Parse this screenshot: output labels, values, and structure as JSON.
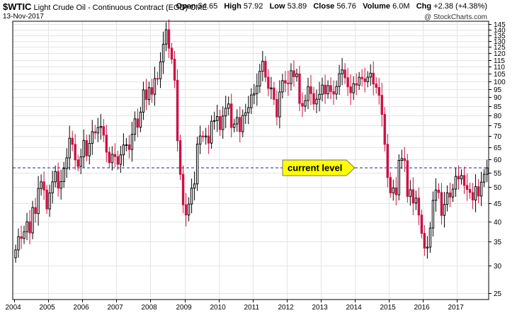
{
  "header": {
    "symbol": "$WTIC",
    "name": "Light Crude Oil - Continuous Contract (EOD)",
    "exchange": "CME",
    "date": "13-Nov-2017",
    "open_label": "Open",
    "open_value": "54.65",
    "high_label": "High",
    "high_value": "57.92",
    "low_label": "Low",
    "low_value": "53.89",
    "close_label": "Close",
    "close_value": "56.76",
    "volume_label": "Volume",
    "volume_value": "6.0M",
    "chg_label": "Chg",
    "chg_value": "+2.38 (+4.38%)",
    "brand": "@ StockCharts.com"
  },
  "colors": {
    "up": "#000000",
    "down": "#cc1144",
    "grid": "#e4e4e4",
    "reference_line": "#1a2a88",
    "annotation_fill": "#ffff00"
  },
  "chart_data": {
    "type": "candlestick",
    "interval": "monthly",
    "x_tick_labels": [
      "2004",
      "2005",
      "2006",
      "2007",
      "2008",
      "2009",
      "2010",
      "2011",
      "2012",
      "2013",
      "2014",
      "2015",
      "2016",
      "2017"
    ],
    "y_tick_labels": [
      25,
      30,
      35,
      40,
      45,
      50,
      55,
      60,
      65,
      70,
      75,
      80,
      85,
      90,
      95,
      100,
      105,
      110,
      115,
      120,
      125,
      130,
      135,
      140,
      145
    ],
    "ylim": [
      24,
      148
    ],
    "y_scale": "log",
    "grid": true,
    "reference_line": {
      "value": 56.76,
      "style": "dashed"
    },
    "annotation": {
      "text": "current level",
      "value": 56.76,
      "shape": "arrow-right"
    },
    "start": "2004-01",
    "closes": [
      33.2,
      36.2,
      35.8,
      37.4,
      39.9,
      37.1,
      43.8,
      42.1,
      49.6,
      51.8,
      49.1,
      43.4,
      48.2,
      51.8,
      55.4,
      49.7,
      51.9,
      56.5,
      60.6,
      68.9,
      66.2,
      59.8,
      57.3,
      61.0,
      67.9,
      61.4,
      66.6,
      71.9,
      71.3,
      73.9,
      74.4,
      70.3,
      62.9,
      58.7,
      62.0,
      61.1,
      58.1,
      61.8,
      65.9,
      66.0,
      64.0,
      70.7,
      78.2,
      74.0,
      81.7,
      94.5,
      88.7,
      95.9,
      91.8,
      101.8,
      101.6,
      113.5,
      127.4,
      140.0,
      124.1,
      115.5,
      100.6,
      67.8,
      54.4,
      44.6,
      41.7,
      44.8,
      49.7,
      51.1,
      66.3,
      69.9,
      69.5,
      69.9,
      66.7,
      77.0,
      77.3,
      79.4,
      72.9,
      79.7,
      83.8,
      86.2,
      73.9,
      75.6,
      78.9,
      71.9,
      79.97,
      81.4,
      84.1,
      91.4,
      92.2,
      96.97,
      106.7,
      113.9,
      102.7,
      95.4,
      95.7,
      88.8,
      79.2,
      93.2,
      100.4,
      98.8,
      98.5,
      107.1,
      103.0,
      104.9,
      86.5,
      84.96,
      88.1,
      96.5,
      92.2,
      86.2,
      88.9,
      91.8,
      97.5,
      92.05,
      97.2,
      93.5,
      91.97,
      96.6,
      105.0,
      107.7,
      102.3,
      96.4,
      92.7,
      98.4,
      97.5,
      102.6,
      101.6,
      99.7,
      102.7,
      105.4,
      98.2,
      96.0,
      91.2,
      80.5,
      66.2,
      53.3,
      48.2,
      49.8,
      47.6,
      59.6,
      60.3,
      59.5,
      47.1,
      49.2,
      45.1,
      46.6,
      41.7,
      37.0,
      33.6,
      33.8,
      38.3,
      45.9,
      49.1,
      48.3,
      41.6,
      44.7,
      48.2,
      46.9,
      49.4,
      53.7,
      52.8,
      54.0,
      50.6,
      49.3,
      48.3,
      46.0,
      50.2,
      47.2,
      51.7,
      54.4,
      56.76
    ]
  }
}
